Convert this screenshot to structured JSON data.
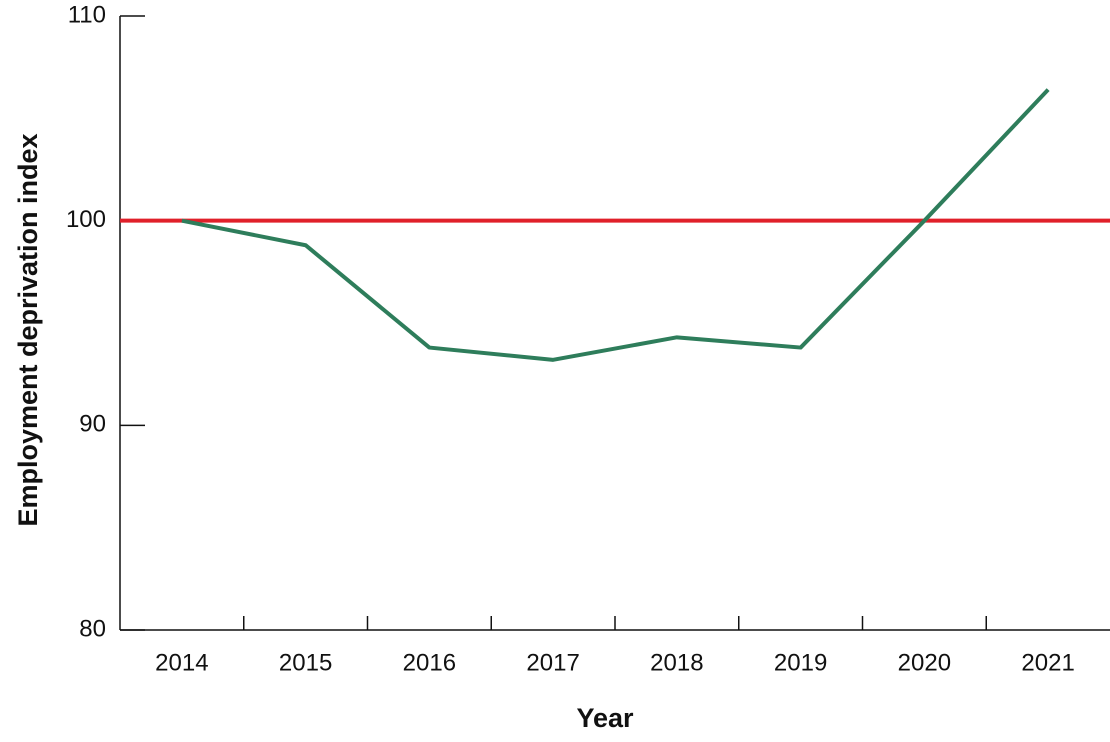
{
  "chart_data": {
    "type": "line",
    "x_label": "Year",
    "y_label": "Employment deprivation index",
    "categories": [
      "2014",
      "2015",
      "2016",
      "2017",
      "2018",
      "2019",
      "2020",
      "2021"
    ],
    "series": [
      {
        "color": "#2e7d5b",
        "values": [
          100,
          98.8,
          93.8,
          93.2,
          94.3,
          93.8,
          100,
          106.4
        ]
      }
    ],
    "reference_line": {
      "value": 100,
      "color": "#e0202a"
    },
    "ylim": [
      80,
      110
    ],
    "yticks": [
      80,
      90,
      100,
      110
    ]
  }
}
